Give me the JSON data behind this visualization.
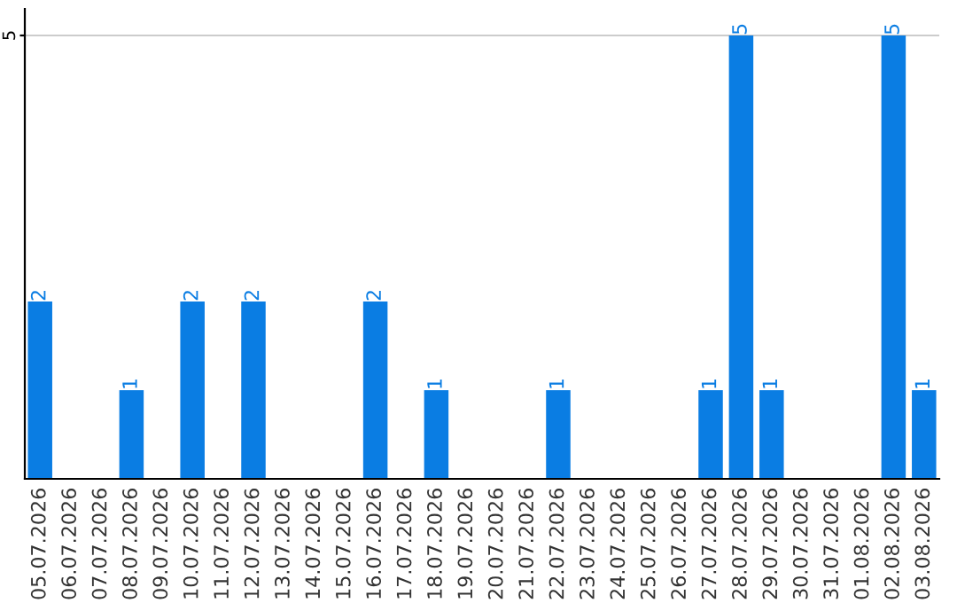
{
  "chart_data": {
    "type": "bar",
    "categories": [
      "05.07.2026",
      "06.07.2026",
      "07.07.2026",
      "08.07.2026",
      "09.07.2026",
      "10.07.2026",
      "11.07.2026",
      "12.07.2026",
      "13.07.2026",
      "14.07.2026",
      "15.07.2026",
      "16.07.2026",
      "17.07.2026",
      "18.07.2026",
      "19.07.2026",
      "20.07.2026",
      "21.07.2026",
      "22.07.2026",
      "23.07.2026",
      "24.07.2026",
      "25.07.2026",
      "26.07.2026",
      "27.07.2026",
      "28.07.2026",
      "29.07.2026",
      "30.07.2026",
      "31.07.2026",
      "01.08.2026",
      "02.08.2026",
      "03.08.2026"
    ],
    "values": [
      2,
      0,
      0,
      1,
      0,
      2,
      0,
      2,
      0,
      0,
      0,
      2,
      0,
      1,
      0,
      0,
      0,
      1,
      0,
      0,
      0,
      0,
      1,
      5,
      1,
      0,
      0,
      0,
      5,
      1
    ],
    "value_labels": [
      "2",
      null,
      null,
      "1",
      null,
      "2",
      null,
      "2",
      null,
      null,
      null,
      "2",
      null,
      "1",
      null,
      null,
      null,
      "1",
      null,
      null,
      null,
      null,
      "1",
      "5",
      "1",
      null,
      null,
      null,
      "5",
      "1"
    ],
    "color": "#0a7de3",
    "ylim": [
      0,
      5.3
    ],
    "yticks": [
      5
    ],
    "grid": "y"
  }
}
